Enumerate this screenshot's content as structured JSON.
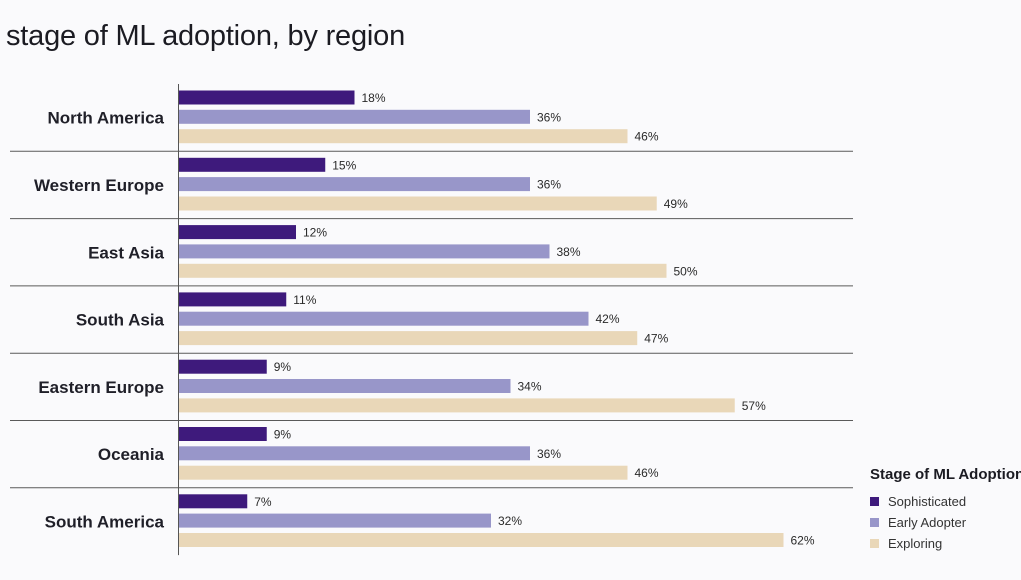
{
  "title": "stage of ML adoption, by region",
  "legend": {
    "title": "Stage of ML Adoption",
    "items": [
      {
        "label": "Sophisticated",
        "color": "#3e1a7c"
      },
      {
        "label": "Early Adopter",
        "color": "#9896c9"
      },
      {
        "label": "Exploring",
        "color": "#e9d7b8"
      }
    ]
  },
  "chart_data": {
    "type": "bar",
    "orientation": "horizontal",
    "title": "stage of ML adoption, by region",
    "categories": [
      "North America",
      "Western Europe",
      "East Asia",
      "South Asia",
      "Eastern Europe",
      "Oceania",
      "South America"
    ],
    "series": [
      {
        "name": "Sophisticated",
        "color": "#3e1a7c",
        "values": [
          18,
          15,
          12,
          11,
          9,
          9,
          7
        ],
        "labels": [
          "18%",
          "15%",
          "12%",
          "11%",
          "9%",
          "9%",
          "7%"
        ]
      },
      {
        "name": "Early Adopter",
        "color": "#9896c9",
        "values": [
          36,
          36,
          38,
          42,
          34,
          36,
          32
        ],
        "labels": [
          "36%",
          "36%",
          "38%",
          "42%",
          "34%",
          "36%",
          "32%"
        ]
      },
      {
        "name": "Exploring",
        "color": "#e9d7b8",
        "values": [
          46,
          49,
          50,
          47,
          57,
          46,
          62
        ],
        "labels": [
          "46%",
          "49%",
          "50%",
          "47%",
          "57%",
          "46%",
          "62%"
        ]
      }
    ],
    "unit": "%",
    "xlim": [
      0,
      100
    ],
    "grid": false,
    "legend_position": "bottom-right"
  }
}
